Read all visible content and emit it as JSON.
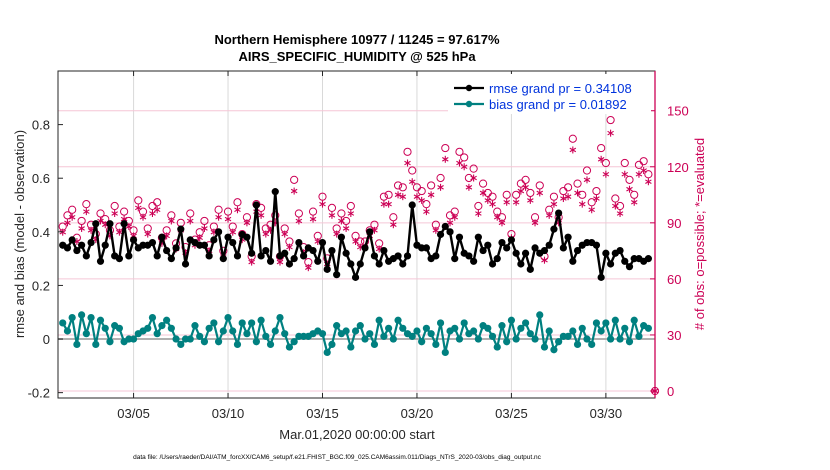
{
  "chart_data": {
    "type": "line",
    "title": "Northern Hemisphere 10977 / 11245 = 97.617%",
    "subtitle": "AIRS_SPECIFIC_HUMIDITY @ 525 hPa",
    "xlabel": "Mar.01,2020 00:00:00 start",
    "ylabel": "rmse and bias (model - observation)",
    "ylabel_right": "# of obs: o=possible; *=evaluated",
    "footnote": "data file: /Users/raeder/DAI/ATM_forcXX/CAM6_setup/f.e21.FHIST_BGC.f09_025.CAM6assim.011/Diags_NTrS_2020-03/obs_diag_output.nc",
    "x_units": "days since Mar.01,2020 00:00:00",
    "xlim": [
      0,
      31.6
    ],
    "ylim": [
      -0.22,
      1.0
    ],
    "ylim_right": [
      0,
      175
    ],
    "x_ticks": [
      {
        "value": 4,
        "label": "03/05"
      },
      {
        "value": 9,
        "label": "03/10"
      },
      {
        "value": 14,
        "label": "03/15"
      },
      {
        "value": 19,
        "label": "03/20"
      },
      {
        "value": 24,
        "label": "03/25"
      },
      {
        "value": 29,
        "label": "03/30"
      }
    ],
    "y_ticks": [
      {
        "value": -0.2,
        "label": "-0.2"
      },
      {
        "value": 0,
        "label": "0"
      },
      {
        "value": 0.2,
        "label": "0.2"
      },
      {
        "value": 0.4,
        "label": "0.4"
      },
      {
        "value": 0.6,
        "label": "0.6"
      },
      {
        "value": 0.8,
        "label": "0.8"
      }
    ],
    "y_ticks_right": [
      {
        "value": 0,
        "label": "0"
      },
      {
        "value": 30,
        "label": "30"
      },
      {
        "value": 60,
        "label": "60"
      },
      {
        "value": 90,
        "label": "90"
      },
      {
        "value": 120,
        "label": "120"
      },
      {
        "value": 150,
        "label": "150"
      }
    ],
    "grid": true,
    "legend": {
      "placement": "top-right",
      "entries": [
        {
          "label": "rmse grand pr = 0.34108",
          "color": "#000000"
        },
        {
          "label": "bias grand pr = 0.01892",
          "color": "#008080"
        }
      ]
    },
    "colors": {
      "rmse": "#000000",
      "bias": "#008080",
      "obs": "#cc0055",
      "zero_line": "#b0b0b0",
      "grid": "#d9d9d9",
      "right_grid": "#f5c6d6"
    },
    "x": [
      0.25,
      0.5,
      0.75,
      1.0,
      1.25,
      1.5,
      1.75,
      2.0,
      2.25,
      2.5,
      2.75,
      3.0,
      3.25,
      3.5,
      3.75,
      4.0,
      4.25,
      4.5,
      4.75,
      5.0,
      5.25,
      5.5,
      5.75,
      6.0,
      6.25,
      6.5,
      6.75,
      7.0,
      7.25,
      7.5,
      7.75,
      8.0,
      8.25,
      8.5,
      8.75,
      9.0,
      9.25,
      9.5,
      9.75,
      10.0,
      10.25,
      10.5,
      10.75,
      11.0,
      11.25,
      11.5,
      11.75,
      12.0,
      12.25,
      12.5,
      12.75,
      13.0,
      13.25,
      13.5,
      13.75,
      14.0,
      14.25,
      14.5,
      14.75,
      15.0,
      15.25,
      15.5,
      15.75,
      16.0,
      16.25,
      16.5,
      16.75,
      17.0,
      17.25,
      17.5,
      17.75,
      18.0,
      18.25,
      18.5,
      18.75,
      19.0,
      19.25,
      19.5,
      19.75,
      20.0,
      20.25,
      20.5,
      20.75,
      21.0,
      21.25,
      21.5,
      21.75,
      22.0,
      22.25,
      22.5,
      22.75,
      23.0,
      23.25,
      23.5,
      23.75,
      24.0,
      24.25,
      24.5,
      24.75,
      25.0,
      25.25,
      25.5,
      25.75,
      26.0,
      26.25,
      26.5,
      26.75,
      27.0,
      27.25,
      27.5,
      27.75,
      28.0,
      28.25,
      28.5,
      28.75,
      29.0,
      29.25,
      29.5,
      29.75,
      30.0,
      30.25,
      30.5,
      30.75,
      31.0,
      31.25
    ],
    "series": [
      {
        "name": "rmse",
        "values": [
          0.35,
          0.34,
          0.37,
          0.33,
          0.35,
          0.31,
          0.36,
          0.43,
          0.29,
          0.35,
          0.43,
          0.31,
          0.3,
          0.43,
          0.31,
          0.37,
          0.34,
          0.35,
          0.35,
          0.36,
          0.31,
          0.38,
          0.33,
          0.3,
          0.34,
          0.41,
          0.28,
          0.37,
          0.36,
          0.35,
          0.35,
          0.31,
          0.37,
          0.4,
          0.3,
          0.38,
          0.36,
          0.31,
          0.39,
          0.38,
          0.32,
          0.5,
          0.31,
          0.33,
          0.29,
          0.55,
          0.31,
          0.32,
          0.28,
          0.3,
          0.36,
          0.31,
          0.34,
          0.33,
          0.29,
          0.36,
          0.26,
          0.33,
          0.24,
          0.38,
          0.32,
          0.28,
          0.23,
          0.28,
          0.34,
          0.4,
          0.31,
          0.28,
          0.33,
          0.29,
          0.3,
          0.31,
          0.28,
          0.31,
          0.5,
          0.35,
          0.34,
          0.34,
          0.3,
          0.31,
          0.39,
          0.42,
          0.4,
          0.3,
          0.38,
          0.32,
          0.31,
          0.29,
          0.38,
          0.33,
          0.35,
          0.28,
          0.3,
          0.36,
          0.34,
          0.37,
          0.32,
          0.28,
          0.32,
          0.26,
          0.34,
          0.32,
          0.33,
          0.35,
          0.41,
          0.47,
          0.34,
          0.38,
          0.29,
          0.33,
          0.35,
          0.36,
          0.36,
          0.35,
          0.23,
          0.32,
          0.28,
          0.32,
          0.33,
          0.29,
          0.27,
          0.3,
          0.3,
          0.29,
          0.3
        ]
      },
      {
        "name": "bias",
        "values": [
          0.06,
          0.03,
          0.08,
          -0.02,
          0.09,
          0.02,
          0.08,
          -0.02,
          0.07,
          0.04,
          -0.01,
          0.05,
          0.04,
          -0.01,
          0.0,
          0.0,
          0.02,
          0.03,
          0.04,
          0.08,
          0.02,
          0.05,
          0.07,
          0.04,
          0.0,
          -0.02,
          0.0,
          0.0,
          0.05,
          0.01,
          -0.01,
          0.04,
          0.06,
          -0.01,
          0.03,
          0.08,
          0.03,
          -0.02,
          0.06,
          0.02,
          0.06,
          -0.01,
          0.07,
          0.01,
          -0.02,
          0.03,
          0.08,
          0.02,
          -0.03,
          -0.01,
          0.01,
          0.01,
          0.01,
          0.02,
          0.03,
          0.02,
          -0.05,
          -0.02,
          0.05,
          0.02,
          0.03,
          -0.03,
          0.03,
          0.05,
          0.0,
          0.02,
          -0.02,
          0.07,
          0.01,
          0.04,
          0.0,
          0.07,
          0.04,
          0.02,
          0.01,
          0.03,
          -0.01,
          0.04,
          0.02,
          -0.02,
          0.06,
          -0.05,
          0.03,
          0.04,
          0.0,
          0.06,
          0.02,
          0.03,
          0.0,
          0.05,
          0.04,
          0.01,
          -0.03,
          0.05,
          -0.01,
          0.07,
          0.0,
          0.04,
          0.06,
          0.02,
          0.0,
          0.09,
          -0.03,
          0.03,
          -0.04,
          -0.01,
          0.01,
          0.01,
          0.03,
          -0.02,
          0.04,
          0.0,
          -0.02,
          0.06,
          0.03,
          0.06,
          0.0,
          0.07,
          0.0,
          0.04,
          -0.01,
          0.07,
          0.01,
          0.05,
          0.04
        ]
      },
      {
        "name": "obs_possible",
        "values": [
          88,
          94,
          97,
          82,
          91,
          100,
          89,
          84,
          95,
          92,
          86,
          99,
          88,
          96,
          91,
          86,
          102,
          96,
          87,
          99,
          101,
          82,
          86,
          94,
          79,
          90,
          77,
          95,
          81,
          85,
          91,
          78,
          88,
          97,
          75,
          96,
          88,
          101,
          84,
          93,
          72,
          100,
          98,
          87,
          89,
          94,
          72,
          87,
          80,
          113,
          95,
          77,
          69,
          96,
          83,
          104,
          71,
          98,
          87,
          95,
          91,
          99,
          83,
          80,
          80,
          86,
          89,
          79,
          104,
          105,
          93,
          110,
          109,
          128,
          118,
          109,
          107,
          100,
          110,
          89,
          114,
          130,
          94,
          96,
          128,
          125,
          114,
          119,
          99,
          111,
          106,
          104,
          96,
          93,
          105,
          84,
          105,
          111,
          113,
          106,
          93,
          110,
          72,
          97,
          104,
          93,
          107,
          109,
          135,
          111,
          105,
          118,
          101,
          107,
          130,
          122,
          145,
          103,
          99,
          122,
          113,
          105,
          121,
          123,
          116
        ]
      },
      {
        "name": "obs_evaluated",
        "values": [
          85,
          90,
          93,
          80,
          87,
          96,
          86,
          81,
          91,
          89,
          83,
          95,
          85,
          92,
          88,
          83,
          98,
          93,
          84,
          95,
          97,
          79,
          83,
          91,
          76,
          86,
          74,
          91,
          78,
          82,
          87,
          75,
          85,
          93,
          72,
          92,
          85,
          97,
          81,
          90,
          69,
          96,
          94,
          84,
          86,
          90,
          69,
          84,
          77,
          107,
          91,
          74,
          66,
          92,
          80,
          100,
          68,
          94,
          84,
          91,
          87,
          95,
          80,
          77,
          77,
          83,
          86,
          76,
          100,
          100,
          89,
          105,
          104,
          122,
          112,
          104,
          102,
          96,
          105,
          86,
          109,
          124,
          90,
          93,
          122,
          120,
          109,
          114,
          95,
          106,
          102,
          100,
          93,
          90,
          101,
          82,
          101,
          107,
          109,
          102,
          90,
          106,
          70,
          94,
          100,
          90,
          103,
          104,
          129,
          106,
          100,
          113,
          97,
          103,
          124,
          116,
          138,
          99,
          95,
          116,
          108,
          101,
          116,
          118,
          112
        ]
      },
      {
        "name": "obs_zero_marker",
        "x": [
          31.6
        ],
        "values": [
          0
        ]
      }
    ]
  }
}
